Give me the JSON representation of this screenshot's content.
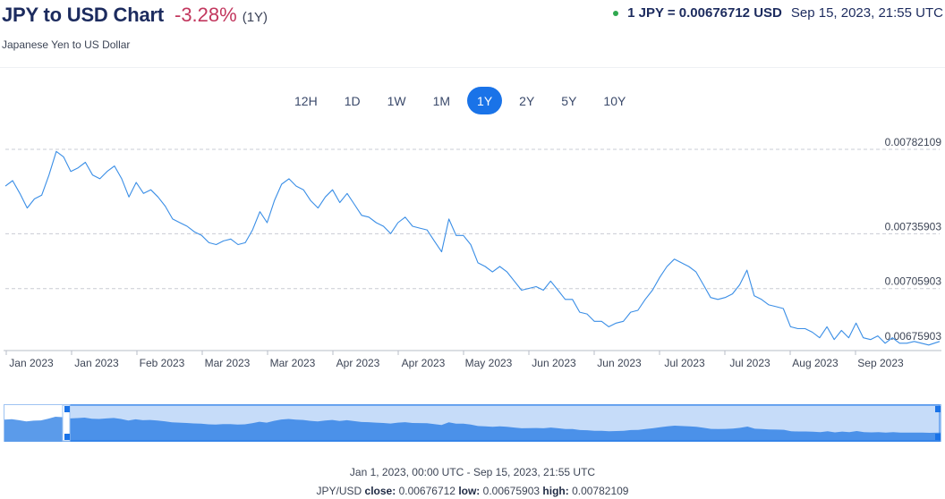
{
  "header": {
    "title": "JPY to USD Chart",
    "change": "-3.28%",
    "period": "(1Y)",
    "subtitle": "Japanese Yen to US Dollar",
    "rate": "1 JPY = 0.00676712 USD",
    "timestamp": "Sep 15, 2023, 21:55 UTC",
    "change_color": "#c2375e",
    "live_color": "#2fa84f"
  },
  "range_tabs": [
    {
      "label": "12H",
      "active": false
    },
    {
      "label": "1D",
      "active": false
    },
    {
      "label": "1W",
      "active": false
    },
    {
      "label": "1M",
      "active": false
    },
    {
      "label": "1Y",
      "active": true
    },
    {
      "label": "2Y",
      "active": false
    },
    {
      "label": "5Y",
      "active": false
    },
    {
      "label": "10Y",
      "active": false
    }
  ],
  "chart_data": {
    "type": "line",
    "title": "",
    "xlabel": "",
    "ylabel": "",
    "x_range": [
      "Jan 1, 2023",
      "Sep 15, 2023"
    ],
    "y_ticks": [
      "0.00782109",
      "0.00735903",
      "0.00705903",
      "0.00675903"
    ],
    "y_tick_values": [
      0.00782109,
      0.00735903,
      0.00705903,
      0.00675903
    ],
    "x_tick_labels": [
      "Jan 2023",
      "Jan 2023",
      "Feb 2023",
      "Mar 2023",
      "Mar 2023",
      "Apr 2023",
      "Apr 2023",
      "May 2023",
      "Jun 2023",
      "Jun 2023",
      "Jul 2023",
      "Jul 2023",
      "Aug 2023",
      "Sep 2023"
    ],
    "grid": true,
    "line_color": "#3a8ee6",
    "series": [
      {
        "name": "",
        "x": [
          "2023-01-01",
          "2023-01-03",
          "2023-01-05",
          "2023-01-07",
          "2023-01-09",
          "2023-01-11",
          "2023-01-13",
          "2023-01-15",
          "2023-01-17",
          "2023-01-19",
          "2023-01-21",
          "2023-01-23",
          "2023-01-25",
          "2023-01-27",
          "2023-01-29",
          "2023-01-31",
          "2023-02-02",
          "2023-02-04",
          "2023-02-06",
          "2023-02-08",
          "2023-02-10",
          "2023-02-12",
          "2023-02-14",
          "2023-02-16",
          "2023-02-18",
          "2023-02-20",
          "2023-02-22",
          "2023-02-24",
          "2023-02-26",
          "2023-02-28",
          "2023-03-02",
          "2023-03-04",
          "2023-03-06",
          "2023-03-08",
          "2023-03-10",
          "2023-03-12",
          "2023-03-14",
          "2023-03-16",
          "2023-03-18",
          "2023-03-20",
          "2023-03-22",
          "2023-03-24",
          "2023-03-26",
          "2023-03-28",
          "2023-03-30",
          "2023-04-01",
          "2023-04-03",
          "2023-04-05",
          "2023-04-07",
          "2023-04-09",
          "2023-04-11",
          "2023-04-13",
          "2023-04-15",
          "2023-04-17",
          "2023-04-19",
          "2023-04-21",
          "2023-04-23",
          "2023-04-25",
          "2023-04-27",
          "2023-04-29",
          "2023-05-01",
          "2023-05-03",
          "2023-05-05",
          "2023-05-07",
          "2023-05-09",
          "2023-05-11",
          "2023-05-13",
          "2023-05-15",
          "2023-05-17",
          "2023-05-19",
          "2023-05-21",
          "2023-05-23",
          "2023-05-25",
          "2023-05-27",
          "2023-05-29",
          "2023-05-31",
          "2023-06-02",
          "2023-06-04",
          "2023-06-06",
          "2023-06-08",
          "2023-06-10",
          "2023-06-12",
          "2023-06-14",
          "2023-06-16",
          "2023-06-18",
          "2023-06-20",
          "2023-06-22",
          "2023-06-24",
          "2023-06-26",
          "2023-06-28",
          "2023-06-30",
          "2023-07-02",
          "2023-07-04",
          "2023-07-06",
          "2023-07-08",
          "2023-07-10",
          "2023-07-12",
          "2023-07-14",
          "2023-07-16",
          "2023-07-18",
          "2023-07-20",
          "2023-07-22",
          "2023-07-24",
          "2023-07-26",
          "2023-07-28",
          "2023-07-30",
          "2023-08-01",
          "2023-08-03",
          "2023-08-05",
          "2023-08-07",
          "2023-08-09",
          "2023-08-11",
          "2023-08-13",
          "2023-08-15",
          "2023-08-17",
          "2023-08-19",
          "2023-08-21",
          "2023-08-23",
          "2023-08-25",
          "2023-08-27",
          "2023-08-29",
          "2023-08-31",
          "2023-09-02",
          "2023-09-04",
          "2023-09-06",
          "2023-09-08",
          "2023-09-10",
          "2023-09-12",
          "2023-09-15"
        ],
        "values": [
          0.00762,
          0.00765,
          0.00758,
          0.0075,
          0.00755,
          0.00757,
          0.00768,
          0.00781,
          0.00778,
          0.0077,
          0.00772,
          0.00775,
          0.00768,
          0.00766,
          0.0077,
          0.00773,
          0.00766,
          0.00756,
          0.00764,
          0.00758,
          0.0076,
          0.00756,
          0.00751,
          0.00744,
          0.00742,
          0.0074,
          0.00737,
          0.00735,
          0.00731,
          0.0073,
          0.00732,
          0.00733,
          0.0073,
          0.00731,
          0.00738,
          0.00748,
          0.00742,
          0.00754,
          0.00763,
          0.00766,
          0.00762,
          0.0076,
          0.00754,
          0.0075,
          0.00756,
          0.0076,
          0.00753,
          0.00758,
          0.00752,
          0.00746,
          0.00745,
          0.00742,
          0.0074,
          0.00736,
          0.00742,
          0.00745,
          0.0074,
          0.00739,
          0.00738,
          0.00732,
          0.00726,
          0.00744,
          0.00735,
          0.00735,
          0.0073,
          0.0072,
          0.00718,
          0.00715,
          0.00718,
          0.00715,
          0.0071,
          0.00705,
          0.00706,
          0.00707,
          0.00705,
          0.0071,
          0.00705,
          0.007,
          0.007,
          0.00693,
          0.00692,
          0.00688,
          0.00688,
          0.00685,
          0.00687,
          0.00688,
          0.00693,
          0.00694,
          0.007,
          0.00705,
          0.00712,
          0.00718,
          0.00722,
          0.0072,
          0.00718,
          0.00715,
          0.00708,
          0.00701,
          0.007,
          0.00701,
          0.00703,
          0.00708,
          0.00716,
          0.00702,
          0.007,
          0.00697,
          0.00696,
          0.00695,
          0.00685,
          0.00684,
          0.00684,
          0.00682,
          0.00679,
          0.00685,
          0.00678,
          0.00683,
          0.00679,
          0.00687,
          0.00679,
          0.00678,
          0.0068,
          0.00676,
          0.00679,
          0.00676,
          0.00676,
          0.00677,
          0.00676,
          0.00675,
          0.00677
        ]
      }
    ]
  },
  "navigator": {
    "selection": "full range"
  },
  "footer": {
    "range_text": "Jan 1, 2023, 00:00 UTC - Sep 15, 2023, 21:55 UTC",
    "pair_label": "JPY/USD",
    "close_label": "close:",
    "close_value": "0.00676712",
    "low_label": "low:",
    "low_value": "0.00675903",
    "high_label": "high:",
    "high_value": "0.00782109"
  }
}
